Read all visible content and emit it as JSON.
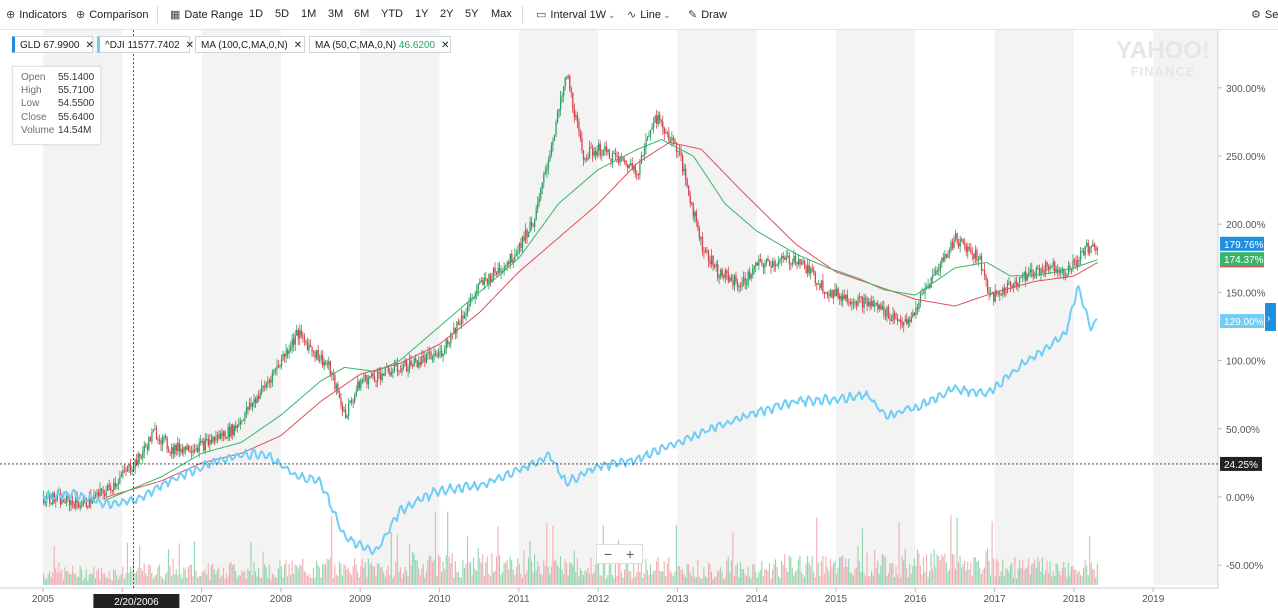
{
  "toolbar": {
    "indicators": "Indicators",
    "comparison": "Comparison",
    "date_range": "Date Range",
    "ranges": [
      "1D",
      "5D",
      "1M",
      "3M",
      "6M",
      "YTD",
      "1Y",
      "2Y",
      "5Y",
      "Max"
    ],
    "interval": "Interval",
    "interval_value": "1W",
    "line": "Line",
    "draw": "Draw",
    "settings": "Se"
  },
  "chips": {
    "gld": "GLD 67.9900",
    "dji": "^DJI 11577.7402",
    "ma100": "MA (100,C,MA,0,N)",
    "ma50": "MA (50,C,MA,0,N)",
    "ma50_value": "46.6200"
  },
  "tooltip": {
    "open_label": "Open",
    "open": "55.1400",
    "high_label": "High",
    "high": "55.7100",
    "low_label": "Low",
    "low": "54.5500",
    "close_label": "Close",
    "close": "55.6400",
    "volume_label": "Volume",
    "volume": "14.54M"
  },
  "watermark": {
    "line1": "YAHOO!",
    "line2": "FINANCE"
  },
  "zoom": {
    "minus": "−",
    "plus": "+"
  },
  "colors": {
    "gld_up": "#2e9e62",
    "gld_down": "#d9434e",
    "dji": "#6fcdf6",
    "ma100": "#e0505a",
    "ma50": "#39b56a",
    "accent": "#1f8fe0",
    "band": "#f3f3f3"
  },
  "chart_data": {
    "type": "line",
    "y_unit": "%",
    "y_ticks": [
      "300.00%",
      "250.00%",
      "200.00%",
      "150.00%",
      "100.00%",
      "50.00%",
      "0.00%",
      "-50.00%"
    ],
    "x_ticks": [
      "2005",
      "2006",
      "2007",
      "2008",
      "2009",
      "2010",
      "2011",
      "2012",
      "2013",
      "2014",
      "2015",
      "2016",
      "2017",
      "2018",
      "2019"
    ],
    "crosshair": {
      "x_label": "2/20/2006",
      "y_label": "24.25%",
      "y_value": 24.25,
      "x_value": 2006.14
    },
    "last_values": {
      "gld": "179.76%",
      "ma50": "174.37%",
      "dji": "129.00%"
    },
    "series": [
      {
        "name": "GLD",
        "style": "candles",
        "x": [
          2005.0,
          2005.5,
          2005.8,
          2006.2,
          2006.4,
          2006.6,
          2007.0,
          2007.4,
          2007.8,
          2008.2,
          2008.6,
          2008.8,
          2009.0,
          2009.5,
          2010.0,
          2010.5,
          2010.9,
          2011.2,
          2011.6,
          2011.8,
          2012.0,
          2012.5,
          2012.7,
          2013.0,
          2013.3,
          2013.5,
          2013.8,
          2014.0,
          2014.5,
          2014.9,
          2015.5,
          2015.9,
          2016.1,
          2016.5,
          2016.8,
          2016.95,
          2017.3,
          2017.7,
          2017.9,
          2018.2,
          2018.3
        ],
        "values": [
          0,
          -5,
          5,
          28,
          48,
          35,
          38,
          50,
          82,
          120,
          95,
          60,
          85,
          95,
          105,
          155,
          175,
          205,
          310,
          250,
          255,
          240,
          280,
          255,
          185,
          165,
          155,
          170,
          175,
          150,
          140,
          126,
          150,
          190,
          175,
          145,
          160,
          170,
          165,
          185,
          180
        ]
      },
      {
        "name": "^DJI",
        "style": "line",
        "x": [
          2005.0,
          2005.4,
          2005.8,
          2006.2,
          2006.6,
          2007.0,
          2007.4,
          2007.8,
          2008.2,
          2008.5,
          2008.8,
          2009.0,
          2009.2,
          2009.5,
          2010.0,
          2010.5,
          2011.0,
          2011.4,
          2011.6,
          2012.0,
          2012.5,
          2013.0,
          2013.5,
          2014.0,
          2014.5,
          2015.0,
          2015.4,
          2015.65,
          2015.9,
          2016.0,
          2016.5,
          2016.9,
          2017.3,
          2017.9,
          2018.05,
          2018.2,
          2018.3
        ],
        "values": [
          0,
          2,
          -5,
          -2,
          12,
          22,
          30,
          32,
          15,
          12,
          -30,
          -35,
          -40,
          -10,
          5,
          8,
          20,
          30,
          10,
          22,
          28,
          40,
          52,
          62,
          70,
          72,
          75,
          58,
          65,
          65,
          80,
          75,
          95,
          120,
          155,
          125,
          129
        ]
      },
      {
        "name": "MA (100,C,MA,0,N)",
        "style": "line",
        "x": [
          2005.8,
          2006.5,
          2007.0,
          2007.5,
          2008.0,
          2008.5,
          2009.0,
          2009.5,
          2010.0,
          2010.5,
          2011.0,
          2011.5,
          2012.0,
          2012.5,
          2012.9,
          2013.3,
          2013.8,
          2014.5,
          2015.0,
          2015.5,
          2016.0,
          2016.5,
          2017.0,
          2017.5,
          2018.0,
          2018.3
        ],
        "values": [
          0,
          12,
          25,
          32,
          45,
          70,
          90,
          98,
          112,
          135,
          165,
          190,
          215,
          245,
          260,
          255,
          225,
          185,
          165,
          155,
          145,
          140,
          150,
          158,
          162,
          172
        ]
      },
      {
        "name": "MA (50,C,MA,0,N)",
        "style": "line",
        "x": [
          2005.8,
          2006.5,
          2007.0,
          2007.5,
          2008.0,
          2008.5,
          2008.8,
          2009.2,
          2009.5,
          2010.0,
          2010.5,
          2011.0,
          2011.5,
          2012.0,
          2012.5,
          2012.8,
          2013.2,
          2013.6,
          2014.0,
          2014.5,
          2014.9,
          2015.3,
          2015.6,
          2016.0,
          2016.5,
          2016.9,
          2017.2,
          2017.6,
          2018.0,
          2018.3
        ],
        "values": [
          -2,
          15,
          32,
          40,
          60,
          85,
          95,
          92,
          100,
          125,
          150,
          175,
          215,
          240,
          255,
          262,
          250,
          215,
          195,
          178,
          168,
          160,
          152,
          148,
          168,
          172,
          162,
          163,
          168,
          174
        ]
      }
    ],
    "volume": {
      "relative_peaks": [
        0.1,
        0.2,
        0.3,
        0.4,
        0.6,
        0.5,
        0.4,
        0.3,
        0.5,
        0.7,
        0.4,
        0.3
      ]
    }
  }
}
